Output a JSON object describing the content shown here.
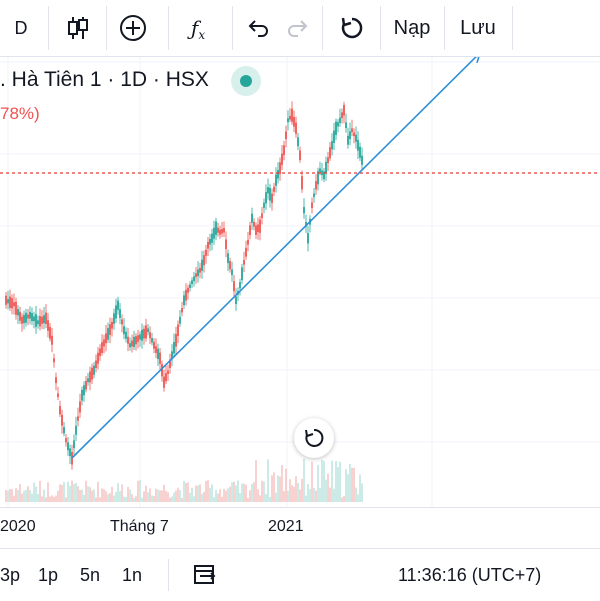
{
  "toolbar": {
    "interval": "D",
    "load_label": "Nạp",
    "save_label": "Lưu"
  },
  "legend": {
    "symbol_title": ". Hà Tiên 1 · 1D · HSX",
    "change_pct": "78%)"
  },
  "xaxis": {
    "labels": [
      "2020",
      "Tháng 7",
      "2021"
    ]
  },
  "bottom_bar": {
    "ranges": [
      "3p",
      "1p",
      "5n",
      "1n"
    ],
    "time": "11:36:16 (UTC+7)"
  },
  "colors": {
    "up": "#26a69a",
    "down": "#ef5350",
    "trendline": "#2f8fd8",
    "price_line": "#e53935"
  },
  "chart_data": {
    "type": "candlestick",
    "title": "Hà Tiên 1 · 1D · HSX",
    "x_labels": [
      "2020",
      "Tháng 7",
      "2021"
    ],
    "series": [
      {
        "values": [
          [
            6,
            300
          ],
          [
            14,
            304
          ],
          [
            22,
            320
          ],
          [
            30,
            315
          ],
          [
            38,
            322
          ],
          [
            46,
            318
          ],
          [
            52,
            340
          ],
          [
            56,
            380
          ],
          [
            60,
            410
          ],
          [
            66,
            440
          ],
          [
            72,
            458
          ],
          [
            76,
            430
          ],
          [
            82,
            395
          ],
          [
            88,
            380
          ],
          [
            94,
            370
          ],
          [
            100,
            352
          ],
          [
            106,
            338
          ],
          [
            112,
            325
          ],
          [
            118,
            305
          ],
          [
            124,
            330
          ],
          [
            130,
            345
          ],
          [
            136,
            340
          ],
          [
            142,
            335
          ],
          [
            148,
            330
          ],
          [
            154,
            345
          ],
          [
            160,
            358
          ],
          [
            164,
            382
          ],
          [
            168,
            372
          ],
          [
            172,
            355
          ],
          [
            176,
            340
          ],
          [
            180,
            320
          ],
          [
            184,
            300
          ],
          [
            188,
            290
          ],
          [
            192,
            282
          ],
          [
            196,
            275
          ],
          [
            200,
            270
          ],
          [
            204,
            260
          ],
          [
            208,
            245
          ],
          [
            212,
            238
          ],
          [
            216,
            228
          ],
          [
            220,
            232
          ],
          [
            224,
            230
          ],
          [
            228,
            258
          ],
          [
            232,
            272
          ],
          [
            236,
            300
          ],
          [
            240,
            285
          ],
          [
            244,
            262
          ],
          [
            248,
            242
          ],
          [
            252,
            218
          ],
          [
            256,
            230
          ],
          [
            260,
            226
          ],
          [
            264,
            205
          ],
          [
            268,
            190
          ],
          [
            272,
            198
          ],
          [
            276,
            180
          ],
          [
            280,
            168
          ],
          [
            284,
            150
          ],
          [
            288,
            120
          ],
          [
            292,
            115
          ],
          [
            296,
            128
          ],
          [
            300,
            155
          ],
          [
            304,
            210
          ],
          [
            308,
            238
          ],
          [
            312,
            205
          ],
          [
            316,
            185
          ],
          [
            320,
            170
          ],
          [
            324,
            175
          ],
          [
            328,
            160
          ],
          [
            332,
            145
          ],
          [
            336,
            128
          ],
          [
            340,
            120
          ],
          [
            344,
            110
          ],
          [
            348,
            140
          ],
          [
            352,
            130
          ],
          [
            356,
            138
          ],
          [
            360,
            152
          ],
          [
            364,
            168
          ]
        ]
      }
    ],
    "trendline": {
      "from_index": 10,
      "to_index": 76
    },
    "price_line": 173
  }
}
